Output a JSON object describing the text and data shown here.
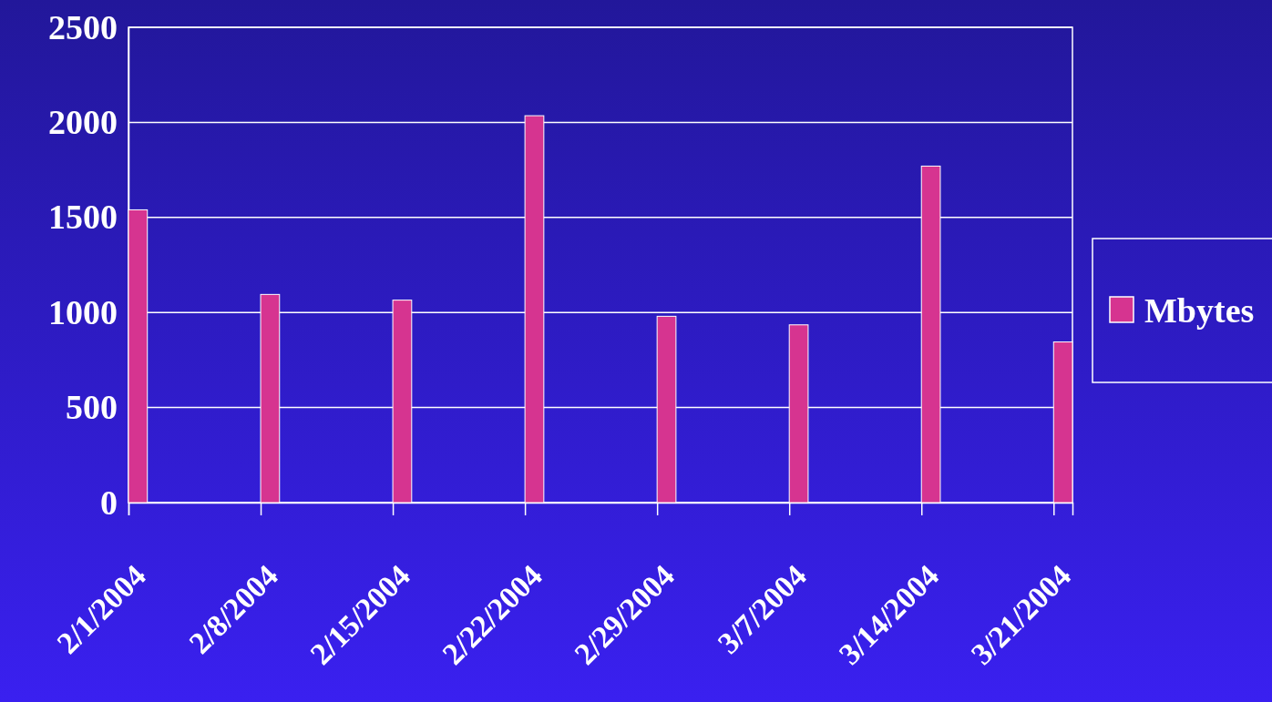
{
  "chart_data": {
    "type": "bar",
    "x": [
      "2004-02-01",
      "2004-02-08",
      "2004-02-15",
      "2004-02-22",
      "2004-02-29",
      "2004-03-07",
      "2004-03-14",
      "2004-03-21"
    ],
    "series": [
      {
        "name": "Mbytes",
        "color": "#d63490",
        "values": [
          1540,
          1095,
          1065,
          2035,
          980,
          935,
          1770,
          845
        ]
      }
    ],
    "xlim": [
      "2004-02-01",
      "2004-03-22"
    ],
    "xticks": [
      {
        "value": "2004-02-01",
        "label": "2/1/2004"
      },
      {
        "value": "2004-02-08",
        "label": "2/8/2004"
      },
      {
        "value": "2004-02-15",
        "label": "2/15/2004"
      },
      {
        "value": "2004-02-22",
        "label": "2/22/2004"
      },
      {
        "value": "2004-02-29",
        "label": "2/29/2004"
      },
      {
        "value": "2004-03-07",
        "label": "3/7/2004"
      },
      {
        "value": "2004-03-14",
        "label": "3/14/2004"
      },
      {
        "value": "2004-03-21",
        "label": "3/21/2004"
      }
    ],
    "ylim": [
      0,
      2500
    ],
    "yticks": [
      0,
      500,
      1000,
      1500,
      2000,
      2500
    ],
    "grid": "y",
    "legend": "right"
  }
}
